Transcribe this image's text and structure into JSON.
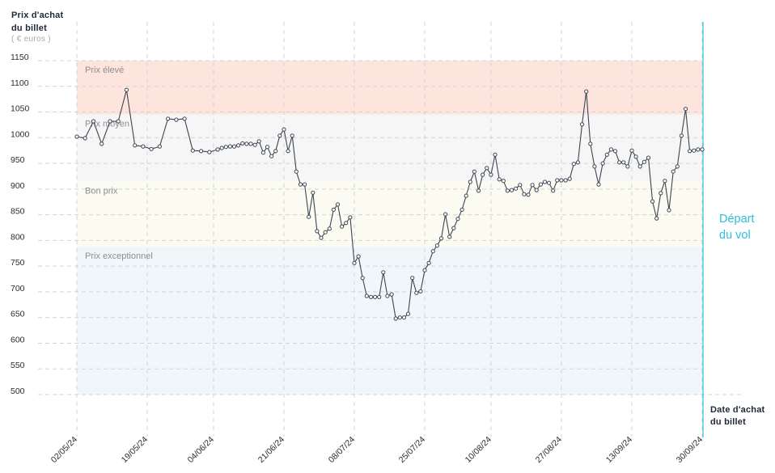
{
  "colors": {
    "price_line": "#3c4553",
    "point_fill": "#ffffff",
    "departure": "#2bbfdc",
    "grid": "#d3d3d3",
    "band_label": "#8e8e8e",
    "axis_text": "#1f2a36",
    "unit_text": "#a9a9a9"
  },
  "chart_data": {
    "type": "line",
    "ylabel": [
      "Prix d'achat",
      "du billet"
    ],
    "yunit": "( € euros )",
    "xlabel": [
      "Date d'achat",
      "du billet"
    ],
    "ylim": [
      500,
      1150
    ],
    "yticks": [
      1150,
      1100,
      1050,
      1000,
      950,
      900,
      850,
      800,
      750,
      700,
      650,
      600,
      550,
      500
    ],
    "xlim": [
      "2024-05-02",
      "2024-09-30"
    ],
    "xticks": [
      {
        "date": "2024-05-02",
        "label": "02/05/24"
      },
      {
        "date": "2024-05-19",
        "label": "19/05/24"
      },
      {
        "date": "2024-06-04",
        "label": "04/06/24"
      },
      {
        "date": "2024-06-21",
        "label": "21/06/24"
      },
      {
        "date": "2024-07-08",
        "label": "08/07/24"
      },
      {
        "date": "2024-07-25",
        "label": "25/07/24"
      },
      {
        "date": "2024-08-10",
        "label": "10/08/24"
      },
      {
        "date": "2024-08-27",
        "label": "27/08/24"
      },
      {
        "date": "2024-09-13",
        "label": "13/09/24"
      },
      {
        "date": "2024-09-30",
        "label": "30/09/24"
      }
    ],
    "grid": true,
    "bands": [
      {
        "label": "Prix élevé",
        "from": 1045,
        "to": 1150,
        "color": "#fde5de"
      },
      {
        "label": "Prix moyen",
        "from": 915,
        "to": 1045,
        "color": "#f6f6f6"
      },
      {
        "label": "Bon prix",
        "from": 788,
        "to": 915,
        "color": "#fbfbf1"
      },
      {
        "label": "Prix exceptionnel",
        "from": 500,
        "to": 788,
        "color": "#f0f7fb"
      }
    ],
    "annotations": [
      {
        "text": [
          "Départ",
          "du vol"
        ],
        "x": "2024-09-30"
      }
    ],
    "x": [
      "2024-05-02",
      "2024-05-04",
      "2024-05-06",
      "2024-05-08",
      "2024-05-10",
      "2024-05-12",
      "2024-05-14",
      "2024-05-16",
      "2024-05-18",
      "2024-05-20",
      "2024-05-22",
      "2024-05-24",
      "2024-05-26",
      "2024-05-28",
      "2024-05-30",
      "2024-06-01",
      "2024-06-03",
      "2024-06-05",
      "2024-06-06",
      "2024-06-07",
      "2024-06-08",
      "2024-06-09",
      "2024-06-10",
      "2024-06-11",
      "2024-06-12",
      "2024-06-13",
      "2024-06-14",
      "2024-06-15",
      "2024-06-16",
      "2024-06-17",
      "2024-06-18",
      "2024-06-19",
      "2024-06-20",
      "2024-06-21",
      "2024-06-22",
      "2024-06-23",
      "2024-06-24",
      "2024-06-25",
      "2024-06-26",
      "2024-06-27",
      "2024-06-28",
      "2024-06-29",
      "2024-06-30",
      "2024-07-01",
      "2024-07-02",
      "2024-07-03",
      "2024-07-04",
      "2024-07-05",
      "2024-07-06",
      "2024-07-07",
      "2024-07-08",
      "2024-07-09",
      "2024-07-10",
      "2024-07-11",
      "2024-07-12",
      "2024-07-13",
      "2024-07-14",
      "2024-07-15",
      "2024-07-16",
      "2024-07-17",
      "2024-07-18",
      "2024-07-19",
      "2024-07-20",
      "2024-07-21",
      "2024-07-22",
      "2024-07-23",
      "2024-07-24",
      "2024-07-25",
      "2024-07-26",
      "2024-07-27",
      "2024-07-28",
      "2024-07-29",
      "2024-07-30",
      "2024-07-31",
      "2024-08-01",
      "2024-08-02",
      "2024-08-03",
      "2024-08-04",
      "2024-08-05",
      "2024-08-06",
      "2024-08-07",
      "2024-08-08",
      "2024-08-09",
      "2024-08-10",
      "2024-08-11",
      "2024-08-12",
      "2024-08-13",
      "2024-08-14",
      "2024-08-15",
      "2024-08-16",
      "2024-08-17",
      "2024-08-18",
      "2024-08-19",
      "2024-08-20",
      "2024-08-21",
      "2024-08-22",
      "2024-08-23",
      "2024-08-24",
      "2024-08-25",
      "2024-08-26",
      "2024-08-27",
      "2024-08-28",
      "2024-08-29",
      "2024-08-30",
      "2024-08-31",
      "2024-09-01",
      "2024-09-02",
      "2024-09-03",
      "2024-09-04",
      "2024-09-05",
      "2024-09-06",
      "2024-09-07",
      "2024-09-08",
      "2024-09-09",
      "2024-09-10",
      "2024-09-11",
      "2024-09-12",
      "2024-09-13",
      "2024-09-14",
      "2024-09-15",
      "2024-09-16",
      "2024-09-17",
      "2024-09-18",
      "2024-09-19",
      "2024-09-20",
      "2024-09-21",
      "2024-09-22",
      "2024-09-23",
      "2024-09-24",
      "2024-09-25",
      "2024-09-26",
      "2024-09-27",
      "2024-09-28",
      "2024-09-29",
      "2024-09-30"
    ],
    "series": [
      {
        "values": [
          1002,
          999,
          1032,
          988,
          1032,
          1032,
          1093,
          985,
          983,
          978,
          983,
          1037,
          1035,
          1037,
          975,
          974,
          972,
          977,
          980,
          982,
          983,
          983,
          985,
          989,
          988,
          988,
          986,
          993,
          971,
          982,
          964,
          974,
          1004,
          1016,
          974,
          1004,
          934,
          909,
          909,
          846,
          893,
          818,
          805,
          816,
          823,
          860,
          870,
          827,
          834,
          845,
          756,
          769,
          727,
          692,
          690,
          690,
          690,
          738,
          692,
          695,
          648,
          650,
          650,
          657,
          727,
          698,
          701,
          742,
          756,
          779,
          790,
          804,
          851,
          807,
          824,
          842,
          860,
          887,
          914,
          934,
          897,
          928,
          941,
          928,
          967,
          919,
          916,
          897,
          898,
          901,
          908,
          890,
          889,
          908,
          898,
          909,
          914,
          912,
          897,
          917,
          917,
          917,
          920,
          949,
          952,
          1026,
          1090,
          988,
          944,
          909,
          950,
          967,
          977,
          974,
          952,
          952,
          944,
          975,
          963,
          944,
          953,
          961,
          876,
          843,
          892,
          916,
          859,
          934,
          944,
          1004,
          1056,
          974,
          975,
          977,
          977
        ]
      }
    ]
  }
}
